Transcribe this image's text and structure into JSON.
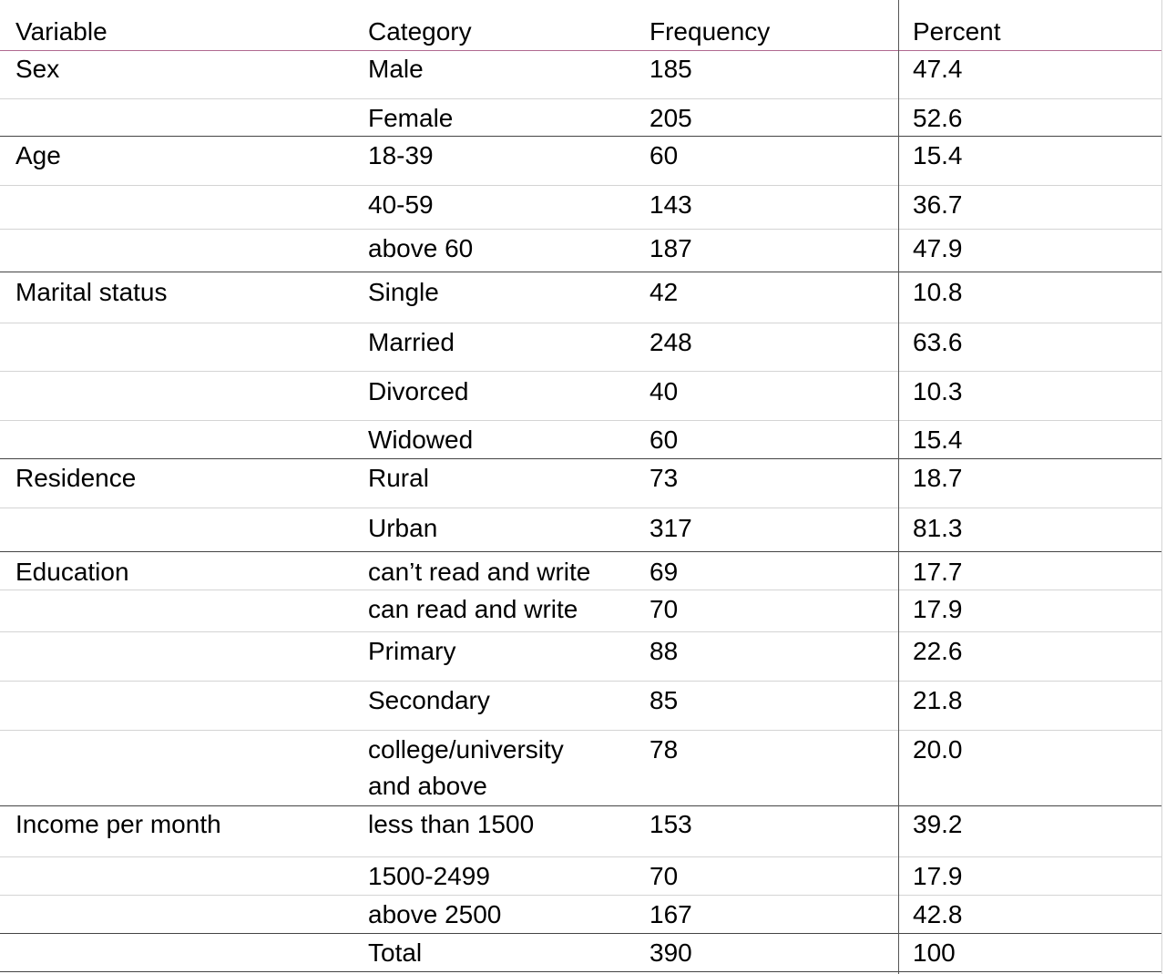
{
  "table": {
    "headers": [
      "Variable",
      "Category",
      "Frequency",
      "Percent"
    ],
    "rows": [
      {
        "variable": "Sex",
        "category": "Male",
        "frequency": "185",
        "percent": "47.4"
      },
      {
        "variable": "",
        "category": "Female",
        "frequency": "205",
        "percent": "52.6"
      },
      {
        "variable": "Age",
        "category": "18-39",
        "frequency": "60",
        "percent": "15.4"
      },
      {
        "variable": "",
        "category": "40-59",
        "frequency": "143",
        "percent": "36.7"
      },
      {
        "variable": "",
        "category": "above 60",
        "frequency": "187",
        "percent": "47.9"
      },
      {
        "variable": "Marital status",
        "category": "Single",
        "frequency": "42",
        "percent": "10.8"
      },
      {
        "variable": "",
        "category": "Married",
        "frequency": "248",
        "percent": "63.6"
      },
      {
        "variable": "",
        "category": "Divorced",
        "frequency": "40",
        "percent": "10.3"
      },
      {
        "variable": "",
        "category": "Widowed",
        "frequency": "60",
        "percent": "15.4"
      },
      {
        "variable": "Residence",
        "category": "Rural",
        "frequency": "73",
        "percent": "18.7"
      },
      {
        "variable": "",
        "category": "Urban",
        "frequency": "317",
        "percent": "81.3"
      },
      {
        "variable": "Education",
        "category": "can’t read and write",
        "frequency": "69",
        "percent": "17.7"
      },
      {
        "variable": "",
        "category": "can read and write",
        "frequency": "70",
        "percent": "17.9"
      },
      {
        "variable": "",
        "category": "Primary",
        "frequency": "88",
        "percent": "22.6"
      },
      {
        "variable": "",
        "category": "Secondary",
        "frequency": "85",
        "percent": "21.8"
      },
      {
        "variable": "",
        "category": "college/university",
        "category2": "and above",
        "frequency": "78",
        "percent": "20.0"
      },
      {
        "variable": "Income per month",
        "category": "less than 1500",
        "frequency": "153",
        "percent": "39.2"
      },
      {
        "variable": "",
        "category": "1500-2499",
        "frequency": "70",
        "percent": "17.9"
      },
      {
        "variable": "",
        "category": "above 2500",
        "frequency": "167",
        "percent": "42.8"
      },
      {
        "variable": "",
        "category": "Total",
        "frequency": "390",
        "percent": "100"
      }
    ]
  },
  "colors": {
    "header_rule": "#b06a90",
    "group_rule": "#444444",
    "row_rule": "#d4d4d4"
  }
}
